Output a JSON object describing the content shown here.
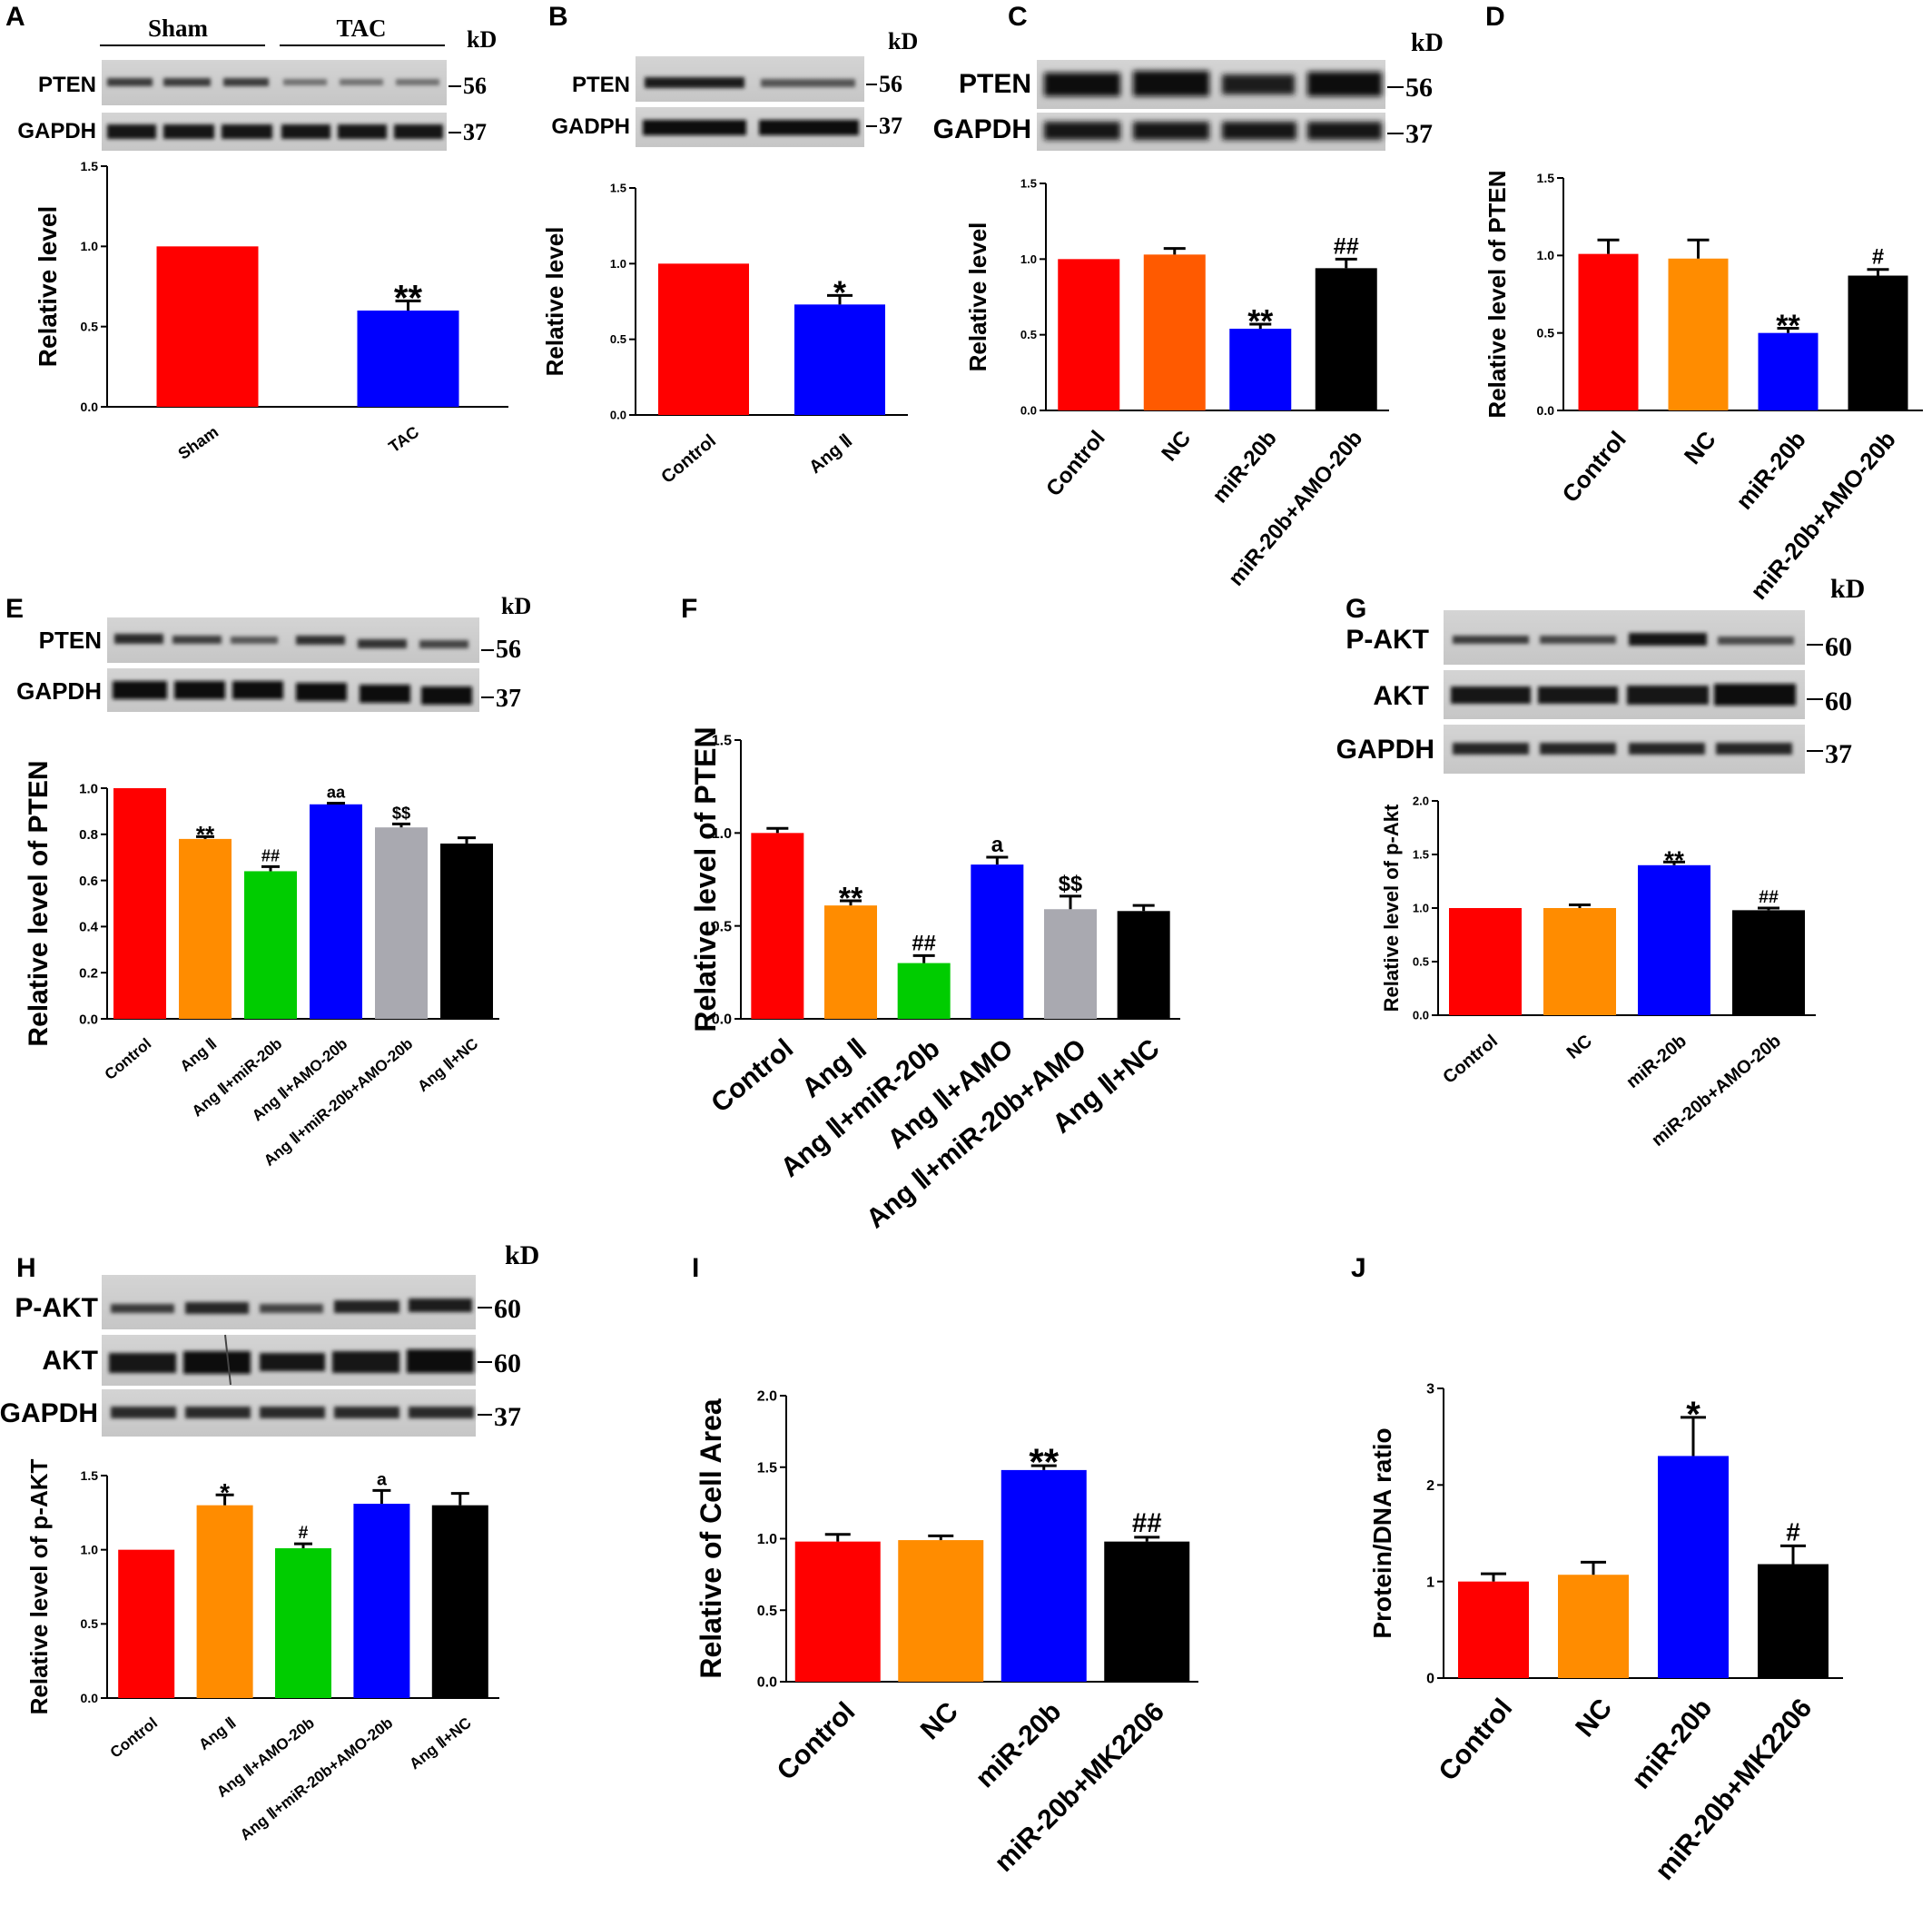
{
  "figure": {
    "panel_labels": [
      "A",
      "B",
      "C",
      "D",
      "E",
      "F",
      "G",
      "H",
      "I",
      "J"
    ],
    "kd_label": "kD",
    "blots": {
      "A": {
        "groups": [
          "Sham",
          "TAC"
        ],
        "rows": [
          {
            "name": "PTEN",
            "kd": "56"
          },
          {
            "name": "GAPDH",
            "kd": "37"
          }
        ]
      },
      "B": {
        "rows": [
          {
            "name": "PTEN",
            "kd": "56"
          },
          {
            "name": "GADPH",
            "kd": "37"
          }
        ]
      },
      "C": {
        "rows": [
          {
            "name": "PTEN",
            "kd": "56"
          },
          {
            "name": "GAPDH",
            "kd": "37"
          }
        ]
      },
      "E": {
        "rows": [
          {
            "name": "PTEN",
            "kd": "56"
          },
          {
            "name": "GAPDH",
            "kd": "37"
          }
        ]
      },
      "G": {
        "rows": [
          {
            "name": "P-AKT",
            "kd": "60"
          },
          {
            "name": "AKT",
            "kd": "60"
          },
          {
            "name": "GAPDH",
            "kd": "37"
          }
        ]
      },
      "H": {
        "rows": [
          {
            "name": "P-AKT",
            "kd": "60"
          },
          {
            "name": "AKT",
            "kd": "60"
          },
          {
            "name": "GAPDH",
            "kd": "37"
          }
        ]
      }
    }
  },
  "colors": {
    "red": "#ff0000",
    "blue": "#0000ff",
    "orange_c": "#ff5a00",
    "orange": "#ff8c00",
    "green": "#00cc00",
    "gray": "#a9a9b0",
    "black": "#000000"
  },
  "chart_data": [
    {
      "id": "A",
      "type": "bar",
      "title": "",
      "xlabel": "",
      "ylabel": "Relative level",
      "categories": [
        "Sham",
        "TAC"
      ],
      "values": [
        1.0,
        0.6
      ],
      "errors": [
        0,
        0.06
      ],
      "annotations": [
        "",
        "**"
      ],
      "ylim": [
        0,
        1.5
      ],
      "yticks": [
        "0.0",
        "0.5",
        "1.0",
        "1.5"
      ],
      "colors": [
        "#ff0000",
        "#0000ff"
      ]
    },
    {
      "id": "B",
      "type": "bar",
      "title": "",
      "xlabel": "",
      "ylabel": "Relative level",
      "categories": [
        "Control",
        "Ang Ⅱ"
      ],
      "values": [
        1.0,
        0.73
      ],
      "errors": [
        0,
        0.06
      ],
      "annotations": [
        "",
        "*"
      ],
      "ylim": [
        0,
        1.5
      ],
      "yticks": [
        "0.0",
        "0.5",
        "1.0",
        "1.5"
      ],
      "colors": [
        "#ff0000",
        "#0000ff"
      ]
    },
    {
      "id": "C",
      "type": "bar",
      "title": "",
      "xlabel": "",
      "ylabel": "Relative level",
      "categories": [
        "Control",
        "NC",
        "miR-20b",
        "miR-20b+AMO-20b"
      ],
      "values": [
        1.0,
        1.03,
        0.54,
        0.94
      ],
      "errors": [
        0,
        0.04,
        0.03,
        0.06
      ],
      "annotations": [
        "",
        "",
        "**",
        "##"
      ],
      "ylim": [
        0,
        1.5
      ],
      "yticks": [
        "0.0",
        "0.5",
        "1.0",
        "1.5"
      ],
      "colors": [
        "#ff0000",
        "#ff5a00",
        "#0000ff",
        "#000000"
      ]
    },
    {
      "id": "D",
      "type": "bar",
      "title": "",
      "xlabel": "",
      "ylabel": "Relative level of PTEN",
      "categories": [
        "Control",
        "NC",
        "miR-20b",
        "miR-20b+AMO-20b"
      ],
      "values": [
        1.01,
        0.98,
        0.5,
        0.87
      ],
      "errors": [
        0.09,
        0.12,
        0.03,
        0.04
      ],
      "annotations": [
        "",
        "",
        "**",
        "#"
      ],
      "ylim": [
        0,
        1.5
      ],
      "yticks": [
        "0.0",
        "0.5",
        "1.0",
        "1.5"
      ],
      "colors": [
        "#ff0000",
        "#ff8c00",
        "#0000ff",
        "#000000"
      ]
    },
    {
      "id": "E",
      "type": "bar",
      "title": "",
      "xlabel": "",
      "ylabel": "Relative level of PTEN",
      "categories": [
        "Control",
        "Ang Ⅱ",
        "Ang Ⅱ+miR-20b",
        "Ang Ⅱ+AMO-20b",
        "Ang Ⅱ+miR-20b+AMO-20b",
        "Ang Ⅱ+NC"
      ],
      "values": [
        1.0,
        0.78,
        0.64,
        0.93,
        0.83,
        0.76
      ],
      "errors": [
        0,
        0.01,
        0.02,
        0.005,
        0.015,
        0.025
      ],
      "annotations": [
        "",
        "**",
        "##",
        "aa",
        "$$",
        ""
      ],
      "ylim": [
        0,
        1.0
      ],
      "yticks": [
        "0.0",
        "0.2",
        "0.4",
        "0.6",
        "0.8",
        "1.0"
      ],
      "colors": [
        "#ff0000",
        "#ff8c00",
        "#00cc00",
        "#0000ff",
        "#a9a9b0",
        "#000000"
      ]
    },
    {
      "id": "F",
      "type": "bar",
      "title": "",
      "xlabel": "",
      "ylabel": "Relative level of PTEN",
      "categories": [
        "Control",
        "Ang Ⅱ",
        "Ang Ⅱ+miR-20b",
        "Ang Ⅱ+AMO",
        "Ang Ⅱ+miR-20b+AMO",
        "Ang Ⅱ+NC"
      ],
      "values": [
        1.0,
        0.61,
        0.3,
        0.83,
        0.59,
        0.58
      ],
      "errors": [
        0.025,
        0.025,
        0.04,
        0.04,
        0.07,
        0.03
      ],
      "annotations": [
        "",
        "**",
        "##",
        "a",
        "$$",
        ""
      ],
      "ylim": [
        0,
        1.5
      ],
      "yticks": [
        "0.0",
        "0.5",
        "1.0",
        "1.5"
      ],
      "colors": [
        "#ff0000",
        "#ff8c00",
        "#00cc00",
        "#0000ff",
        "#a9a9b0",
        "#000000"
      ]
    },
    {
      "id": "G",
      "type": "bar",
      "title": "",
      "xlabel": "",
      "ylabel": "Relative level of p-Akt",
      "categories": [
        "Control",
        "NC",
        "miR-20b",
        "miR-20b+AMO-20b"
      ],
      "values": [
        1.0,
        1.0,
        1.4,
        0.98
      ],
      "errors": [
        0,
        0.03,
        0.03,
        0.02
      ],
      "annotations": [
        "",
        "",
        "**",
        "##"
      ],
      "ylim": [
        0,
        2.0
      ],
      "yticks": [
        "0.0",
        "0.5",
        "1.0",
        "1.5",
        "2.0"
      ],
      "colors": [
        "#ff0000",
        "#ff8c00",
        "#0000ff",
        "#000000"
      ]
    },
    {
      "id": "H",
      "type": "bar",
      "title": "",
      "xlabel": "",
      "ylabel": "Relative level of p-AKT",
      "categories": [
        "Control",
        "Ang Ⅱ",
        "Ang Ⅱ+AMO-20b",
        "Ang Ⅱ+miR-20b+AMO-20b",
        "Ang Ⅱ+NC"
      ],
      "values": [
        1.0,
        1.3,
        1.01,
        1.31,
        1.3
      ],
      "errors": [
        0,
        0.07,
        0.03,
        0.09,
        0.08
      ],
      "annotations": [
        "",
        "*",
        "#",
        "a",
        ""
      ],
      "ylim": [
        0,
        1.5
      ],
      "yticks": [
        "0.0",
        "0.5",
        "1.0",
        "1.5"
      ],
      "colors": [
        "#ff0000",
        "#ff8c00",
        "#00cc00",
        "#0000ff",
        "#000000"
      ]
    },
    {
      "id": "I",
      "type": "bar",
      "title": "",
      "xlabel": "",
      "ylabel": "Relative of Cell Area",
      "categories": [
        "Control",
        "NC",
        "miR-20b",
        "miR-20b+MK2206"
      ],
      "values": [
        0.98,
        0.99,
        1.48,
        0.98
      ],
      "errors": [
        0.05,
        0.03,
        0.03,
        0.03
      ],
      "annotations": [
        "",
        "",
        "**",
        "##"
      ],
      "ylim": [
        0,
        2.0
      ],
      "yticks": [
        "0.0",
        "0.5",
        "1.0",
        "1.5",
        "2.0"
      ],
      "colors": [
        "#ff0000",
        "#ff8c00",
        "#0000ff",
        "#000000"
      ]
    },
    {
      "id": "J",
      "type": "bar",
      "title": "",
      "xlabel": "",
      "ylabel": "Protein/DNA ratio",
      "categories": [
        "Control",
        "NC",
        "miR-20b",
        "miR-20b+MK2206"
      ],
      "values": [
        1.0,
        1.07,
        2.3,
        1.18
      ],
      "errors": [
        0.08,
        0.13,
        0.4,
        0.19
      ],
      "annotations": [
        "",
        "",
        "*",
        "#"
      ],
      "ylim": [
        0,
        3
      ],
      "yticks": [
        "0",
        "1",
        "2",
        "3"
      ],
      "colors": [
        "#ff0000",
        "#ff8c00",
        "#0000ff",
        "#000000"
      ]
    }
  ]
}
